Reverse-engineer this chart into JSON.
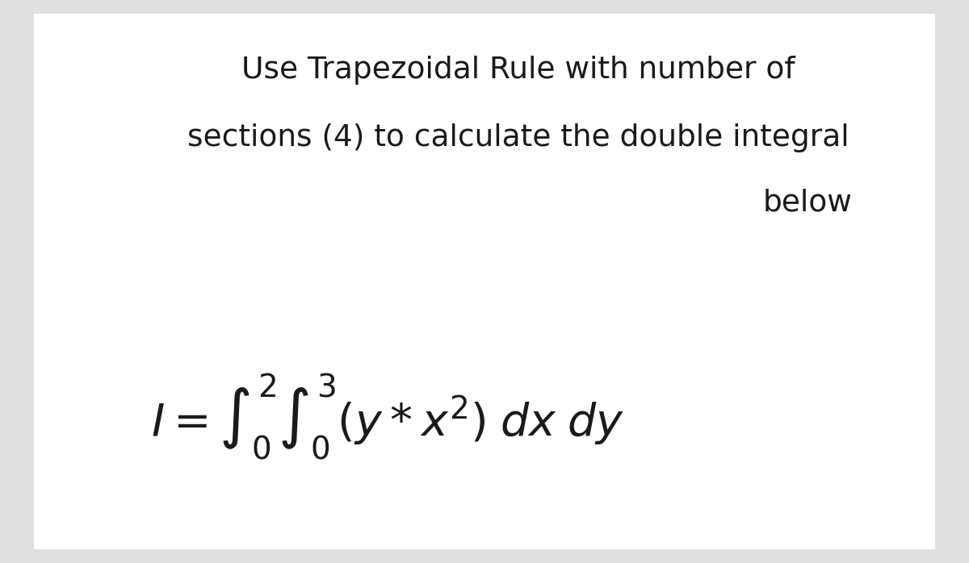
{
  "bg_color": "#e0e0e0",
  "card_color": "#ffffff",
  "title_line1": "Use Trapezoidal Rule with number of",
  "title_line2": "sections (4) to calculate the double integral",
  "title_line3": "below",
  "title_fontsize": 27,
  "title_color": "#1a1a1a",
  "formula_fontsize": 40,
  "formula_color": "#1a1a1a",
  "fig_width": 12.0,
  "fig_height": 6.98
}
